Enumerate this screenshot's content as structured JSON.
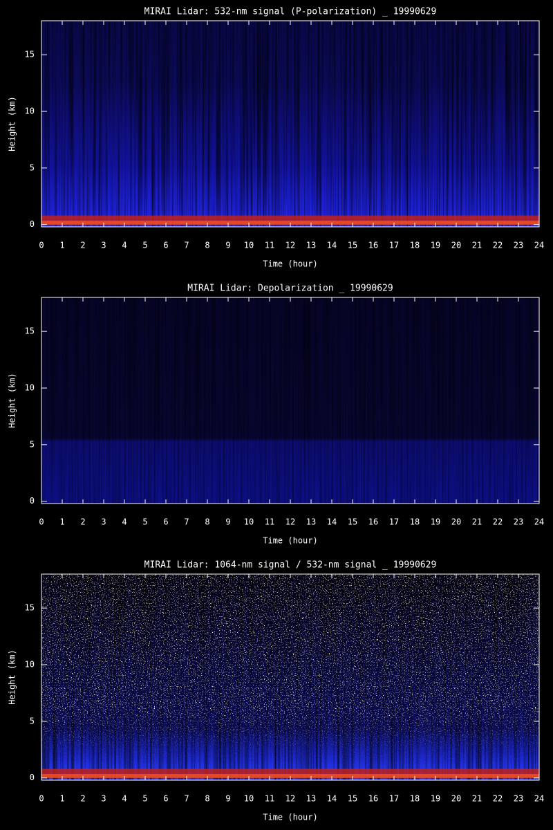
{
  "chart_data": [
    {
      "type": "heatmap",
      "title": "MIRAI Lidar: 532-nm signal (P-polarization) _ 19990629",
      "xlabel": "Time (hour)",
      "ylabel": "Height (km)",
      "xlim": [
        0,
        24
      ],
      "xticks": [
        0,
        1,
        2,
        3,
        4,
        5,
        6,
        7,
        8,
        9,
        10,
        11,
        12,
        13,
        14,
        15,
        16,
        17,
        18,
        19,
        20,
        21,
        22,
        23,
        24
      ],
      "ylim": [
        -0.2,
        18
      ],
      "yticks": [
        0,
        5,
        10,
        15
      ]
    },
    {
      "type": "heatmap",
      "title": "MIRAI Lidar: Depolarization _ 19990629",
      "xlabel": "Time (hour)",
      "ylabel": "Height (km)",
      "xlim": [
        0,
        24
      ],
      "xticks": [
        0,
        1,
        2,
        3,
        4,
        5,
        6,
        7,
        8,
        9,
        10,
        11,
        12,
        13,
        14,
        15,
        16,
        17,
        18,
        19,
        20,
        21,
        22,
        23,
        24
      ],
      "ylim": [
        -0.2,
        18
      ],
      "yticks": [
        0,
        5,
        10,
        15
      ]
    },
    {
      "type": "heatmap",
      "title": "MIRAI Lidar: 1064-nm signal / 532-nm signal _ 19990629",
      "xlabel": "Time (hour)",
      "ylabel": "Height (km)",
      "xlim": [
        0,
        24
      ],
      "xticks": [
        0,
        1,
        2,
        3,
        4,
        5,
        6,
        7,
        8,
        9,
        10,
        11,
        12,
        13,
        14,
        15,
        16,
        17,
        18,
        19,
        20,
        21,
        22,
        23,
        24
      ],
      "ylim": [
        -0.2,
        18
      ],
      "yticks": [
        0,
        5,
        10,
        15
      ]
    }
  ]
}
